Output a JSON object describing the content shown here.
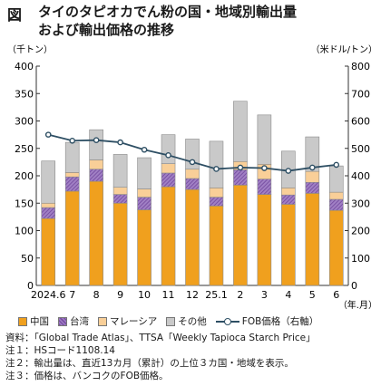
{
  "header": {
    "fig_label": "図",
    "title_line1": "タイのタピオカでん粉の国・地域別輸出量",
    "title_line2": "および輸出価格の推移"
  },
  "axes": {
    "left_unit": "（千トン）",
    "right_unit": "（米ドル/トン）",
    "x_unit": "（年.月）"
  },
  "colors": {
    "china": "#f0a01e",
    "taiwan": "#7b4fa5",
    "malaysia": "#f9cf98",
    "other": "#c9c9c9",
    "fob": "#2e4f64"
  },
  "chart_data": {
    "type": "bar",
    "stacked": true,
    "categories": [
      "2024.6",
      "7",
      "8",
      "9",
      "10",
      "11",
      "12",
      "25.1",
      "2",
      "3",
      "4",
      "5",
      "6"
    ],
    "series": [
      {
        "name": "中国",
        "axis": "left",
        "values": [
          122,
          172,
          190,
          150,
          138,
          180,
          175,
          145,
          183,
          166,
          148,
          168,
          137
        ]
      },
      {
        "name": "台湾",
        "axis": "left",
        "values": [
          20,
          26,
          22,
          16,
          23,
          25,
          20,
          16,
          28,
          28,
          17,
          20,
          20
        ]
      },
      {
        "name": "マレーシア",
        "axis": "left",
        "values": [
          8,
          8,
          17,
          13,
          15,
          17,
          17,
          17,
          15,
          27,
          13,
          20,
          13
        ]
      },
      {
        "name": "その他",
        "axis": "left",
        "values": [
          77,
          55,
          55,
          60,
          57,
          53,
          55,
          85,
          110,
          90,
          67,
          63,
          48
        ]
      },
      {
        "name": "FOB価格（右軸）",
        "axis": "right",
        "type": "line",
        "values": [
          550,
          528,
          530,
          522,
          495,
          475,
          450,
          425,
          430,
          428,
          418,
          430,
          440
        ]
      }
    ],
    "ylim_left": [
      0,
      400
    ],
    "yticks_left": [
      "0",
      "50",
      "100",
      "150",
      "200",
      "250",
      "300",
      "350",
      "400"
    ],
    "ylim_right": [
      0,
      800
    ],
    "yticks_right": [
      "0",
      "100",
      "200",
      "300",
      "400",
      "500",
      "600",
      "700",
      "800"
    ],
    "grid": false,
    "legend_position": "bottom"
  },
  "legend": [
    {
      "label": "中国"
    },
    {
      "label": "台湾"
    },
    {
      "label": "マレーシア"
    },
    {
      "label": "その他"
    },
    {
      "label": "FOB価格（右軸）"
    }
  ],
  "notes": [
    "資料：「Global Trade Atlas」、TTSA「Weekly Tapioca Starch Price」",
    "注１：HSコード1108.14",
    "注２：輸出量は、直近13カ月（累計）の上位３カ国・地域を表示。",
    "注３：価格は、バンコクのFOB価格。"
  ]
}
